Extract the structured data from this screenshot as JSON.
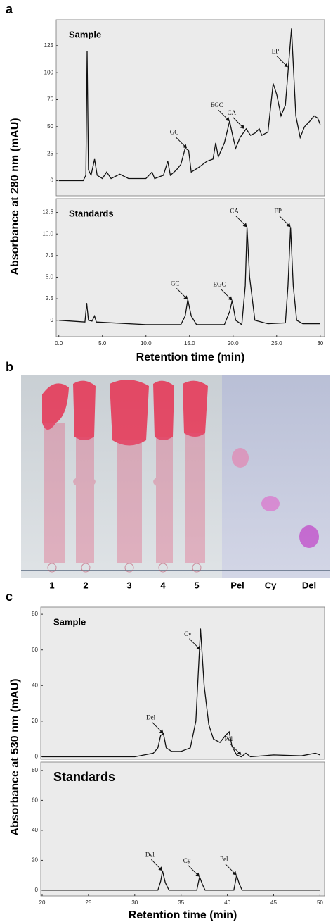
{
  "panel_labels": [
    "a",
    "b",
    "c"
  ],
  "tlc": {
    "lane_labels": [
      "1",
      "2",
      "3",
      "4",
      "5",
      "Pel",
      "Cy",
      "Del"
    ]
  },
  "chart_data": [
    {
      "type": "line",
      "title": "Sample",
      "color": "#111111",
      "x": [
        0,
        2.8,
        3.1,
        3.25,
        3.4,
        3.7,
        4.1,
        4.4,
        5,
        5.5,
        6,
        7,
        8,
        10,
        10.7,
        11,
        12,
        12.5,
        12.8,
        13.5,
        14,
        14.5,
        14.9,
        15.2,
        16,
        17,
        17.7,
        18,
        18.3,
        19,
        19.6,
        20,
        20.3,
        20.8,
        21.5,
        22,
        22.5,
        23,
        23.3,
        24,
        24.6,
        25,
        25.5,
        26,
        26.7,
        27.2,
        27.7,
        28.2,
        28.8,
        29.3,
        29.7,
        30
      ],
      "values": [
        0,
        0,
        5,
        120,
        10,
        5,
        20,
        5,
        2,
        8,
        2,
        6,
        2,
        2,
        8,
        2,
        5,
        18,
        5,
        10,
        15,
        30,
        28,
        8,
        12,
        18,
        20,
        35,
        22,
        35,
        55,
        40,
        30,
        40,
        48,
        42,
        44,
        48,
        42,
        45,
        90,
        80,
        60,
        70,
        141,
        60,
        40,
        50,
        55,
        60,
        58,
        52
      ],
      "xlim": [
        -0.3,
        30.5
      ],
      "ylim": [
        -14,
        149
      ],
      "yticks": [
        0,
        25,
        50,
        75,
        100,
        125
      ],
      "annotations": [
        {
          "text": "GC",
          "x": 14.7,
          "y": 30
        },
        {
          "text": "EGC",
          "x": 19.6,
          "y": 55
        },
        {
          "text": "CA",
          "x": 21.3,
          "y": 48
        },
        {
          "text": "EP",
          "x": 26.3,
          "y": 105
        }
      ]
    },
    {
      "type": "line",
      "title": "Standards",
      "color": "#111111",
      "x": [
        0,
        3,
        3.2,
        3.4,
        3.8,
        4.1,
        4.3,
        10,
        14,
        14.5,
        14.8,
        15.2,
        15.8,
        19,
        19.6,
        19.9,
        20.3,
        21,
        21.4,
        21.6,
        21.9,
        22.5,
        24,
        26,
        26.3,
        26.6,
        26.9,
        27.3,
        28,
        30
      ],
      "values": [
        0,
        -0.2,
        2,
        0,
        -0.1,
        0.5,
        -0.2,
        -0.5,
        -0.5,
        0.5,
        2.4,
        0.5,
        -0.5,
        -0.5,
        1,
        2.3,
        0,
        -0.5,
        4,
        10.8,
        5,
        0,
        -0.4,
        -0.3,
        4,
        10.8,
        4,
        0,
        -0.4,
        -0.4
      ],
      "xlim": [
        -0.3,
        30.5
      ],
      "ylim": [
        -1.9,
        14.1
      ],
      "yticks": [
        0,
        2.5,
        {
          "value": 5,
          "label": "5.0"
        },
        7.5,
        {
          "value": 10,
          "label": "10.0"
        },
        12.5
      ],
      "xticks": [
        {
          "value": 0,
          "label": "0.0"
        },
        {
          "value": 5,
          "label": "5.0"
        },
        {
          "value": 10,
          "label": "10.0"
        },
        {
          "value": 15,
          "label": "15.0"
        },
        {
          "value": 20,
          "label": "20.0"
        },
        {
          "value": 25,
          "label": "25.0"
        },
        30
      ],
      "x_label": "Retention time (min)",
      "y_label": "Absorbance at 280 nm (mAU)",
      "annotations": [
        {
          "text": "GC",
          "x": 14.8,
          "y": 2.4
        },
        {
          "text": "EGC",
          "x": 19.9,
          "y": 2.3
        },
        {
          "text": "CA",
          "x": 21.6,
          "y": 10.8
        },
        {
          "text": "EP",
          "x": 26.6,
          "y": 10.8
        }
      ]
    },
    {
      "type": "line",
      "title": "Sample",
      "color": "#111111",
      "x": [
        20,
        30,
        32,
        32.5,
        32.8,
        33.1,
        33.4,
        34,
        35,
        36,
        36.6,
        37.1,
        37.5,
        38,
        38.5,
        39.2,
        39.8,
        40.2,
        40.5,
        41,
        41.5,
        42,
        42.5,
        45,
        48,
        49.5,
        50
      ],
      "values": [
        0,
        0,
        2,
        5,
        12,
        13,
        5,
        3,
        3,
        5,
        20,
        72,
        40,
        18,
        10,
        8,
        12,
        14,
        6,
        1,
        0,
        2,
        0,
        1,
        0.5,
        2,
        1
      ],
      "xlim": [
        19.85,
        50.5
      ],
      "ylim": [
        -1.4,
        84
      ],
      "yticks": [
        0,
        20,
        40,
        60,
        80
      ],
      "annotations": [
        {
          "text": "Del",
          "x": 33.1,
          "y": 13
        },
        {
          "text": "Cy",
          "x": 37.1,
          "y": 60
        },
        {
          "text": "Pel",
          "x": 41.5,
          "y": 1
        }
      ]
    },
    {
      "type": "line",
      "title": "Standards",
      "color": "#111111",
      "x": [
        20,
        32.5,
        32.8,
        33,
        33.3,
        33.7,
        36.7,
        37,
        37.3,
        37.6,
        40.7,
        41,
        41.3,
        41.6,
        50
      ],
      "values": [
        0,
        0,
        6,
        13,
        5,
        0,
        0,
        9,
        4,
        0,
        0,
        10,
        4,
        0,
        0
      ],
      "xlim": [
        19.85,
        50.5
      ],
      "ylim": [
        -3.8,
        85.6
      ],
      "yticks": [
        0,
        20,
        40,
        60,
        80
      ],
      "xticks": [
        20,
        25,
        30,
        35,
        40,
        45,
        50
      ],
      "x_label": "Retention time (min)",
      "y_label": "Absorbance at 530 nm (mAU)",
      "annotations": [
        {
          "text": "Del",
          "x": 33,
          "y": 13
        },
        {
          "text": "Cy",
          "x": 37,
          "y": 9
        },
        {
          "text": "Pel",
          "x": 41,
          "y": 10
        }
      ]
    }
  ]
}
